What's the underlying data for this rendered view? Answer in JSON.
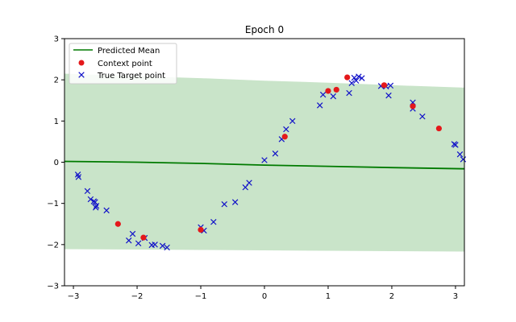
{
  "chart_data": {
    "type": "scatter",
    "title": "Epoch 0",
    "xlabel": "",
    "ylabel": "",
    "xlim": [
      -3.14,
      3.14
    ],
    "ylim": [
      -3,
      3
    ],
    "x_ticks": [
      "-3",
      "-2",
      "-1",
      "0",
      "1",
      "2",
      "3"
    ],
    "y_ticks": [
      "-3",
      "-2",
      "-1",
      "0",
      "1",
      "2",
      "3"
    ],
    "grid": false,
    "legend_position": "upper-left",
    "legend": {
      "mean": "Predicted Mean",
      "context": "Context point",
      "target": "True Target point"
    },
    "colors": {
      "mean": "#007a00",
      "band": "#c9e4c9",
      "context": "#e4181b",
      "target": "#1010c8"
    },
    "series": [
      {
        "name": "Predicted Mean",
        "kind": "line",
        "x": [
          -3.14,
          -2.0,
          -1.0,
          0.0,
          1.0,
          2.0,
          3.14
        ],
        "y": [
          0.02,
          0.0,
          -0.03,
          -0.07,
          -0.1,
          -0.13,
          -0.16
        ]
      },
      {
        "kind": "band",
        "x": [
          -3.14,
          -2.0,
          -1.0,
          0.0,
          1.0,
          2.0,
          3.14
        ],
        "upper": [
          2.15,
          2.09,
          2.04,
          1.98,
          1.93,
          1.87,
          1.81
        ],
        "lower": [
          -2.11,
          -2.12,
          -2.13,
          -2.14,
          -2.15,
          -2.16,
          -2.17
        ]
      },
      {
        "name": "Context point",
        "kind": "scatter",
        "marker": "circle",
        "x": [
          -2.3,
          -1.9,
          -1.0,
          0.32,
          1.0,
          1.13,
          1.3,
          1.88,
          2.33,
          2.74
        ],
        "y": [
          -1.5,
          -1.83,
          -1.64,
          0.62,
          1.73,
          1.76,
          2.06,
          1.87,
          1.36,
          0.82
        ]
      },
      {
        "name": "True Target point",
        "kind": "scatter",
        "marker": "x",
        "x": [
          -2.93,
          -2.92,
          -2.78,
          -2.73,
          -2.68,
          -2.66,
          -2.65,
          -2.64,
          -2.48,
          -2.13,
          -2.07,
          -1.98,
          -1.88,
          -1.77,
          -1.72,
          -1.6,
          -1.53,
          -1.0,
          -0.95,
          -0.8,
          -0.63,
          -0.46,
          -0.3,
          -0.24,
          0.0,
          0.17,
          0.27,
          0.34,
          0.44,
          0.87,
          0.92,
          1.08,
          1.33,
          1.37,
          1.41,
          1.44,
          1.48,
          1.53,
          1.83,
          1.91,
          1.95,
          1.98,
          2.33,
          2.33,
          2.48,
          2.98,
          3.0,
          3.07,
          3.12
        ],
        "y": [
          -0.3,
          -0.36,
          -0.7,
          -0.9,
          -0.95,
          -0.97,
          -1.1,
          -1.06,
          -1.17,
          -1.9,
          -1.74,
          -1.97,
          -1.84,
          -2.01,
          -2.0,
          -2.03,
          -2.07,
          -1.58,
          -1.66,
          -1.45,
          -1.02,
          -0.97,
          -0.61,
          -0.5,
          0.05,
          0.21,
          0.56,
          0.8,
          1.0,
          1.38,
          1.64,
          1.6,
          1.68,
          1.92,
          2.05,
          1.98,
          2.08,
          2.04,
          1.85,
          1.84,
          1.62,
          1.86,
          1.45,
          1.3,
          1.11,
          0.44,
          0.42,
          0.19,
          0.07
        ]
      }
    ]
  }
}
